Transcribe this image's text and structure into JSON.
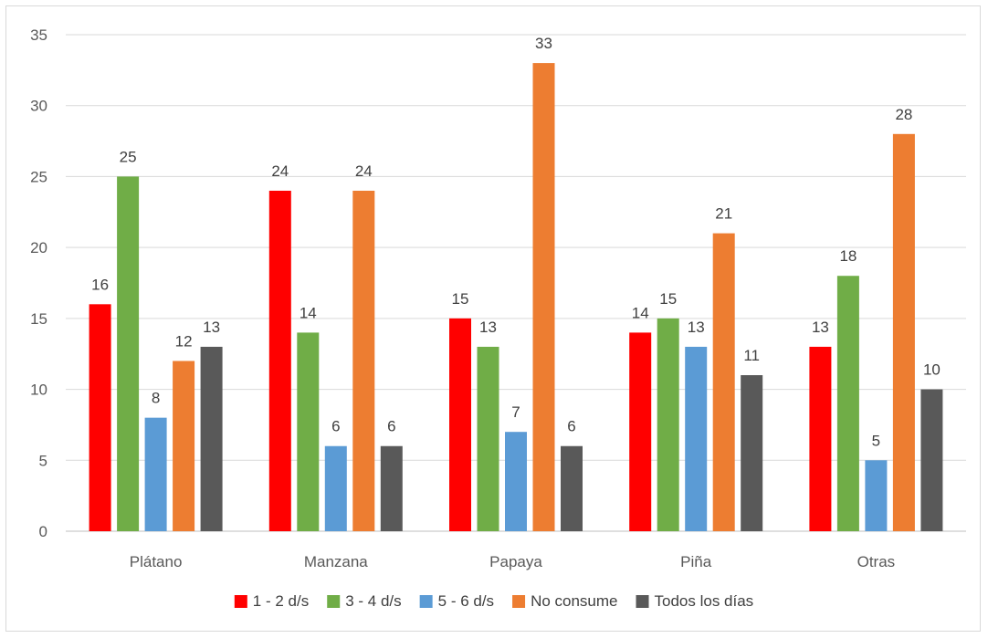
{
  "chart_data": {
    "type": "bar",
    "categories": [
      "Plátano",
      "Manzana",
      "Papaya",
      "Piña",
      "Otras"
    ],
    "series": [
      {
        "name": "1 - 2 d/s",
        "color": "#ff0000",
        "values": [
          16,
          24,
          15,
          14,
          13
        ]
      },
      {
        "name": "3 - 4 d/s",
        "color": "#70ad47",
        "values": [
          25,
          14,
          13,
          15,
          18
        ]
      },
      {
        "name": "5 - 6 d/s",
        "color": "#5b9bd5",
        "values": [
          8,
          6,
          7,
          13,
          5
        ]
      },
      {
        "name": "No consume",
        "color": "#ed7d31",
        "values": [
          12,
          24,
          33,
          21,
          28
        ]
      },
      {
        "name": "Todos los días",
        "color": "#595959",
        "values": [
          13,
          6,
          6,
          11,
          10
        ]
      }
    ],
    "y_ticks": [
      "0",
      "5",
      "10",
      "15",
      "20",
      "25",
      "30",
      "35"
    ],
    "ylim": [
      0,
      35
    ],
    "grid": true,
    "legend": "bottom",
    "data_labels": true
  }
}
